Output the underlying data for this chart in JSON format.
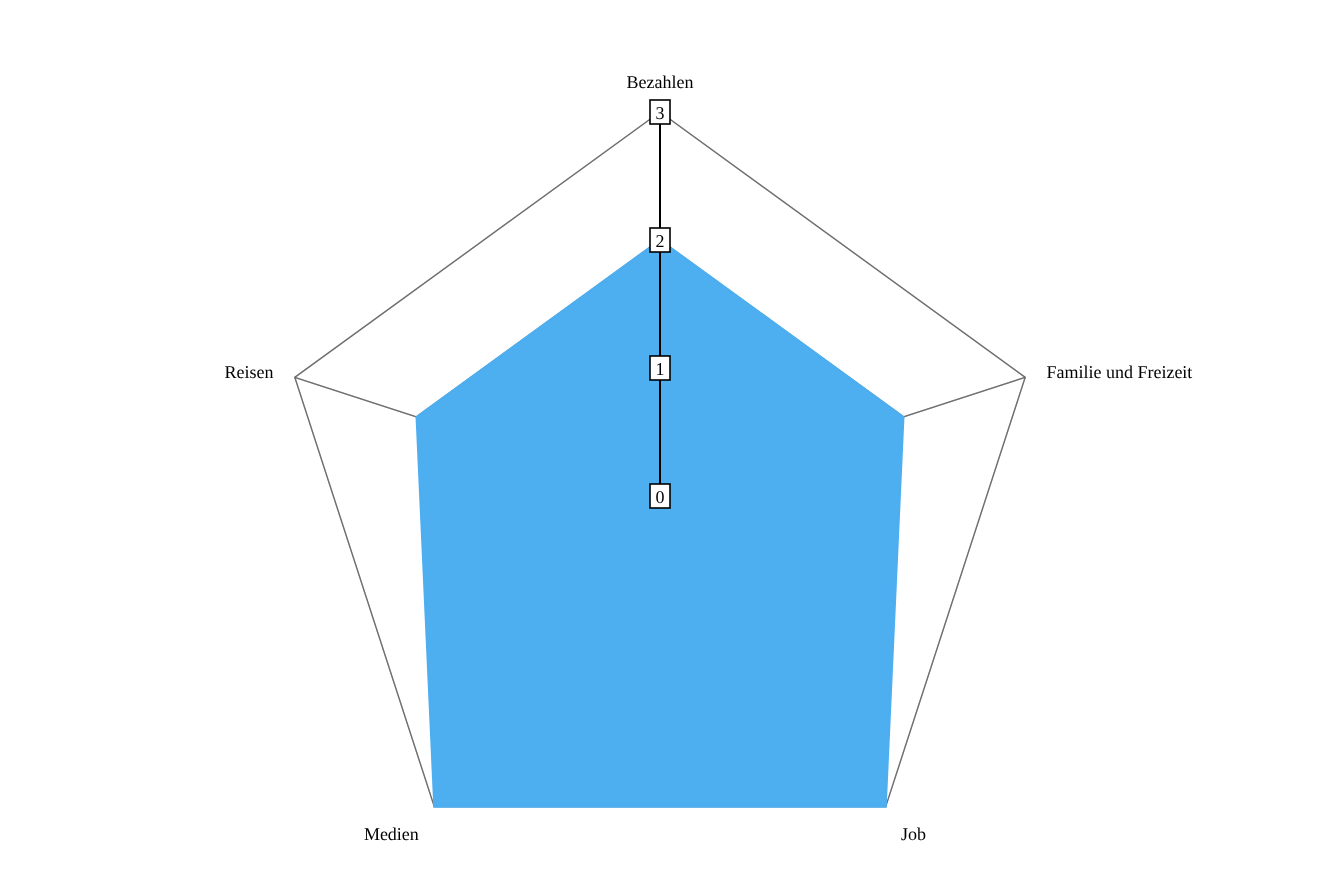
{
  "chart_data": {
    "type": "radar",
    "categories": [
      "Bezahlen",
      "Familie und Freizeit",
      "Job",
      "Medien",
      "Reisen"
    ],
    "series": [
      {
        "color": "#4daef0",
        "values": [
          2,
          2,
          3,
          3,
          2
        ]
      }
    ],
    "ylim": [
      0,
      3
    ],
    "yticks": [
      0,
      1,
      2,
      3
    ],
    "grid": true
  }
}
